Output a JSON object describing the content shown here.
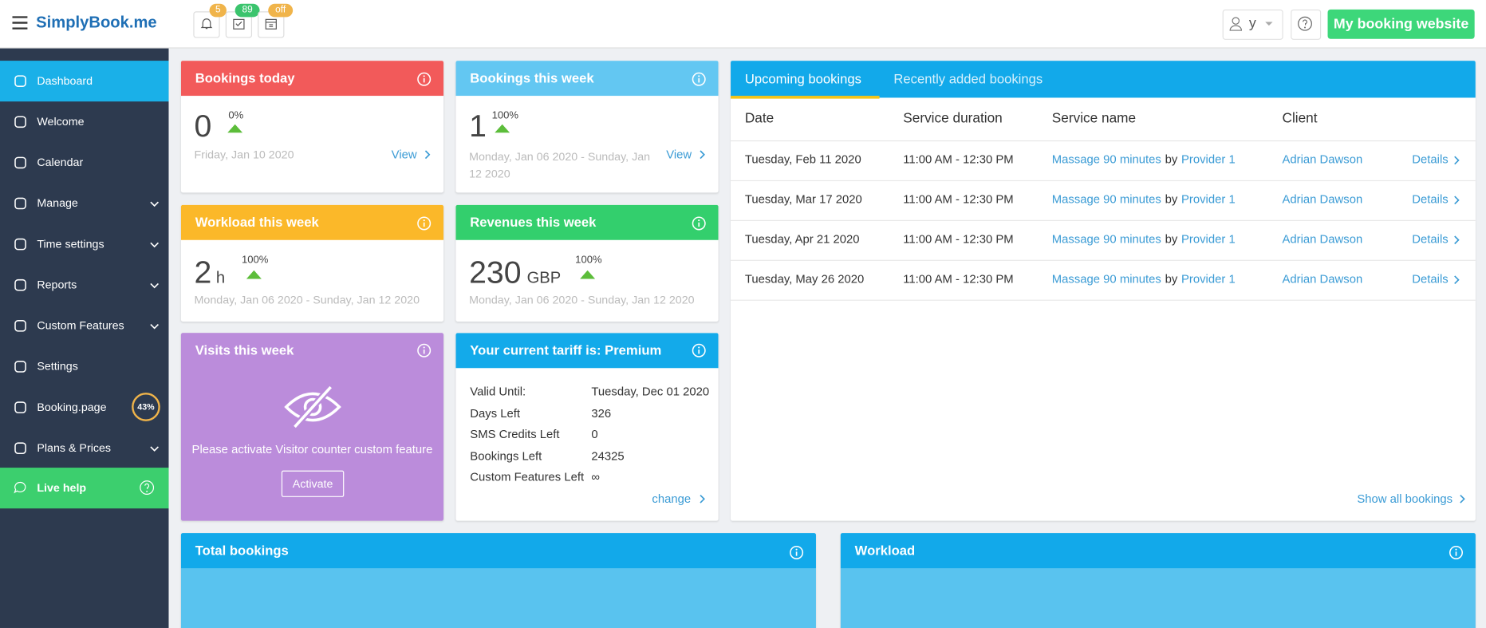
{
  "header": {
    "logo": "SimplyBook.me",
    "badges": [
      "5",
      "89",
      "off"
    ],
    "user": "y",
    "button": "My booking website"
  },
  "sidebar": {
    "items": [
      "Dashboard",
      "Welcome",
      "Calendar",
      "Manage",
      "Time settings",
      "Reports",
      "Custom Features",
      "Settings",
      "Booking.page",
      "Plans & Prices"
    ],
    "booking_page_progress": "43%",
    "live_help": "Live help"
  },
  "cards": {
    "bookings_today": {
      "title": "Bookings today",
      "value": "0",
      "change": "0%",
      "date": "Friday, Jan 10 2020",
      "link": "View"
    },
    "bookings_week": {
      "title": "Bookings this week",
      "value": "1",
      "change": "100%",
      "date": "Monday, Jan 06 2020 - Sunday, Jan 12 2020",
      "link": "View"
    },
    "workload_week": {
      "title": "Workload this week",
      "value": "2",
      "unit": "h",
      "change": "100%",
      "date": "Monday, Jan 06 2020 - Sunday, Jan 12 2020"
    },
    "revenues_week": {
      "title": "Revenues this week",
      "value": "230",
      "unit": "GBP",
      "change": "100%",
      "date": "Monday, Jan 06 2020 - Sunday, Jan 12 2020"
    },
    "visits_week": {
      "title": "Visits this week",
      "message": "Please activate Visitor counter custom feature",
      "button": "Activate"
    },
    "tariff": {
      "title": "Your current tariff is: Premium",
      "rows": [
        [
          "Valid Until:",
          "Tuesday, Dec 01 2020"
        ],
        [
          "Days Left",
          "326"
        ],
        [
          "SMS Credits Left",
          "0"
        ],
        [
          "Bookings Left",
          "24325"
        ],
        [
          "Custom Features Left",
          "∞"
        ]
      ],
      "link": "change"
    }
  },
  "bookings": {
    "tabs": [
      "Upcoming bookings",
      "Recently added bookings"
    ],
    "columns": [
      "Date",
      "Service duration",
      "Service name",
      "Client"
    ],
    "rows": [
      {
        "date": "Tuesday, Feb 11 2020",
        "duration": "11:00 AM - 12:30 PM",
        "service": "Massage 90 minutes",
        "by": "by",
        "provider": "Provider 1",
        "client": "Adrian Dawson",
        "details": "Details"
      },
      {
        "date": "Tuesday, Mar 17 2020",
        "duration": "11:00 AM - 12:30 PM",
        "service": "Massage 90 minutes",
        "by": "by",
        "provider": "Provider 1",
        "client": "Adrian Dawson",
        "details": "Details"
      },
      {
        "date": "Tuesday, Apr 21 2020",
        "duration": "11:00 AM - 12:30 PM",
        "service": "Massage 90 minutes",
        "by": "by",
        "provider": "Provider 1",
        "client": "Adrian Dawson",
        "details": "Details"
      },
      {
        "date": "Tuesday, May 26 2020",
        "duration": "11:00 AM - 12:30 PM",
        "service": "Massage 90 minutes",
        "by": "by",
        "provider": "Provider 1",
        "client": "Adrian Dawson",
        "details": "Details"
      }
    ],
    "footer_link": "Show all bookings"
  },
  "bottom_panels": {
    "total_bookings": "Total bookings",
    "workload": "Workload"
  }
}
